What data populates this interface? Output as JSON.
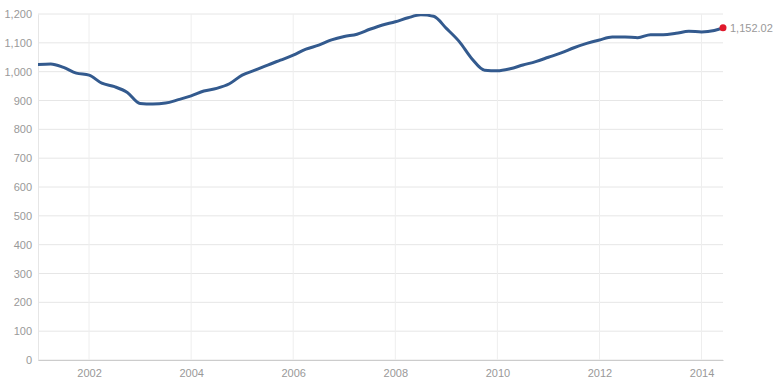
{
  "chart_data": {
    "type": "line",
    "color": "#335a8e",
    "grid": true,
    "marker": "none",
    "line_style": "solid",
    "x": [
      2001.0,
      2001.25,
      2001.5,
      2001.75,
      2002.0,
      2002.25,
      2002.5,
      2002.75,
      2003.0,
      2003.25,
      2003.5,
      2003.75,
      2004.0,
      2004.25,
      2004.5,
      2004.75,
      2005.0,
      2005.25,
      2005.5,
      2005.75,
      2006.0,
      2006.25,
      2006.5,
      2006.75,
      2007.0,
      2007.25,
      2007.5,
      2007.75,
      2008.0,
      2008.25,
      2008.5,
      2008.75,
      2009.0,
      2009.25,
      2009.5,
      2009.75,
      2010.0,
      2010.25,
      2010.5,
      2010.75,
      2011.0,
      2011.25,
      2011.5,
      2011.75,
      2012.0,
      2012.25,
      2012.5,
      2012.75,
      2013.0,
      2013.25,
      2013.5,
      2013.75,
      2014.0,
      2014.25,
      2014.42
    ],
    "values": [
      1025,
      1027,
      1015,
      995,
      988,
      960,
      948,
      928,
      890,
      888,
      891,
      903,
      916,
      933,
      942,
      958,
      988,
      1005,
      1023,
      1040,
      1057,
      1078,
      1092,
      1110,
      1122,
      1130,
      1147,
      1162,
      1173,
      1187,
      1197,
      1192,
      1150,
      1105,
      1045,
      1005,
      1003,
      1010,
      1023,
      1035,
      1050,
      1065,
      1083,
      1098,
      1110,
      1120,
      1120,
      1118,
      1128,
      1128,
      1133,
      1140,
      1138,
      1143,
      1152.02
    ],
    "xlim": [
      2001.0,
      2014.42
    ],
    "xticks": [
      2002,
      2004,
      2006,
      2008,
      2010,
      2012,
      2014
    ],
    "ylim": [
      0,
      1200
    ],
    "yticks": [
      0,
      100,
      200,
      300,
      400,
      500,
      600,
      700,
      800,
      900,
      {
        "value": 1000,
        "label": "1,000"
      },
      {
        "value": 1100,
        "label": "1,100"
      },
      {
        "value": 1200,
        "label": "1,200"
      }
    ],
    "annotations": [
      {
        "x": 2014.42,
        "y": 1152.02,
        "text": "1,152.02",
        "color": "#e0182b"
      }
    ]
  }
}
